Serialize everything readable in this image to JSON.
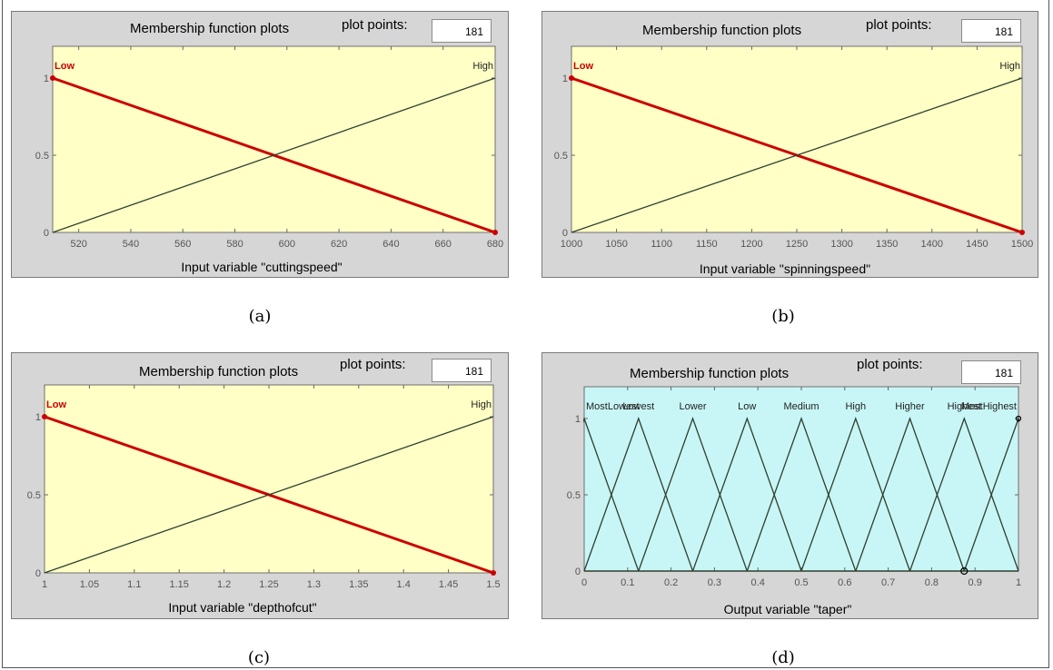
{
  "panels": [
    {
      "caption": "(a)",
      "title": "Membership function plots",
      "plot_points_label": "plot points:",
      "plot_points_value": "181",
      "xlabel": "Input variable \"cuttingspeed\"",
      "bg": "#ffffc6"
    },
    {
      "caption": "(b)",
      "title": "Membership function plots",
      "plot_points_label": "plot points:",
      "plot_points_value": "181",
      "xlabel": "Input variable \"spinningspeed\"",
      "bg": "#ffffc6"
    },
    {
      "caption": "(c)",
      "title": "Membership function plots",
      "plot_points_label": "plot points:",
      "plot_points_value": "181",
      "xlabel": "Input variable \"depthofcut\"",
      "bg": "#ffffc6"
    },
    {
      "caption": "(d)",
      "title": "Membership function plots",
      "plot_points_label": "plot points:",
      "plot_points_value": "181",
      "xlabel": "Output variable \"taper\"",
      "bg": "#c8f6f6"
    }
  ],
  "colors": {
    "selected": "#cc0000",
    "line": "#2f3f2f",
    "axis_text": "#555555"
  },
  "chart_data": [
    {
      "type": "line",
      "xlabel": "Input variable \"cuttingspeed\"",
      "xlim": [
        510,
        680
      ],
      "ylim": [
        0,
        1
      ],
      "xticks": [
        520,
        540,
        560,
        580,
        600,
        620,
        640,
        660,
        680
      ],
      "yticks": [
        0,
        0.5,
        1
      ],
      "series": [
        {
          "name": "Low",
          "x": [
            510,
            680
          ],
          "y": [
            1,
            0
          ],
          "selected": true
        },
        {
          "name": "High",
          "x": [
            510,
            680
          ],
          "y": [
            0,
            1
          ],
          "selected": false
        }
      ]
    },
    {
      "type": "line",
      "xlabel": "Input variable \"spinningspeed\"",
      "xlim": [
        1000,
        1500
      ],
      "ylim": [
        0,
        1
      ],
      "xticks": [
        1000,
        1050,
        1100,
        1150,
        1200,
        1250,
        1300,
        1350,
        1400,
        1450,
        1500
      ],
      "yticks": [
        0,
        0.5,
        1
      ],
      "series": [
        {
          "name": "Low",
          "x": [
            1000,
            1500
          ],
          "y": [
            1,
            0
          ],
          "selected": true
        },
        {
          "name": "High",
          "x": [
            1000,
            1500
          ],
          "y": [
            0,
            1
          ],
          "selected": false
        }
      ]
    },
    {
      "type": "line",
      "xlabel": "Input variable \"depthofcut\"",
      "xlim": [
        1,
        1.5
      ],
      "ylim": [
        0,
        1
      ],
      "xticks": [
        1,
        1.05,
        1.1,
        1.15,
        1.2,
        1.25,
        1.3,
        1.35,
        1.4,
        1.45,
        1.5
      ],
      "yticks": [
        0,
        0.5,
        1
      ],
      "series": [
        {
          "name": "Low",
          "x": [
            1,
            1.5
          ],
          "y": [
            1,
            0
          ],
          "selected": true
        },
        {
          "name": "High",
          "x": [
            1,
            1.5
          ],
          "y": [
            0,
            1
          ],
          "selected": false
        }
      ]
    },
    {
      "type": "line",
      "xlabel": "Output variable \"taper\"",
      "xlim": [
        0,
        1
      ],
      "ylim": [
        0,
        1
      ],
      "xticks": [
        0,
        0.1,
        0.2,
        0.3,
        0.4,
        0.5,
        0.6,
        0.7,
        0.8,
        0.9,
        1
      ],
      "yticks": [
        0,
        0.5,
        1
      ],
      "series": [
        {
          "name": "MostLowest",
          "x": [
            -0.125,
            0,
            0.125
          ],
          "y": [
            0,
            1,
            0
          ]
        },
        {
          "name": "Lowest",
          "x": [
            0,
            0.125,
            0.25
          ],
          "y": [
            0,
            1,
            0
          ]
        },
        {
          "name": "Lower",
          "x": [
            0.125,
            0.25,
            0.375
          ],
          "y": [
            0,
            1,
            0
          ]
        },
        {
          "name": "Low",
          "x": [
            0.25,
            0.375,
            0.5
          ],
          "y": [
            0,
            1,
            0
          ]
        },
        {
          "name": "Medium",
          "x": [
            0.375,
            0.5,
            0.625
          ],
          "y": [
            0,
            1,
            0
          ]
        },
        {
          "name": "High",
          "x": [
            0.5,
            0.625,
            0.75
          ],
          "y": [
            0,
            1,
            0
          ]
        },
        {
          "name": "Higher",
          "x": [
            0.625,
            0.75,
            0.875
          ],
          "y": [
            0,
            1,
            0
          ]
        },
        {
          "name": "Highest",
          "x": [
            0.75,
            0.875,
            1
          ],
          "y": [
            0,
            1,
            0
          ]
        },
        {
          "name": "MostHighest",
          "x": [
            0.875,
            1,
            1.125
          ],
          "y": [
            0,
            1,
            0
          ]
        }
      ]
    }
  ]
}
